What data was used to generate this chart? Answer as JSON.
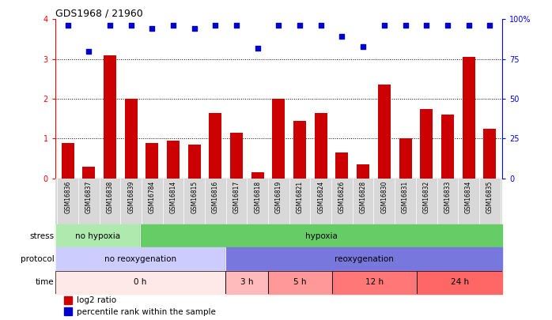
{
  "title": "GDS1968 / 21960",
  "samples": [
    "GSM16836",
    "GSM16837",
    "GSM16838",
    "GSM16839",
    "GSM16784",
    "GSM16814",
    "GSM16815",
    "GSM16816",
    "GSM16817",
    "GSM16818",
    "GSM16819",
    "GSM16821",
    "GSM16824",
    "GSM16826",
    "GSM16828",
    "GSM16830",
    "GSM16831",
    "GSM16832",
    "GSM16833",
    "GSM16834",
    "GSM16835"
  ],
  "log2_ratio": [
    0.9,
    0.3,
    3.1,
    2.0,
    0.9,
    0.95,
    0.85,
    1.65,
    1.15,
    0.15,
    2.0,
    1.45,
    1.65,
    0.65,
    0.35,
    2.35,
    1.0,
    1.75,
    1.6,
    3.05,
    1.25
  ],
  "percentile_rank": [
    96,
    80,
    96,
    96,
    94,
    96,
    94,
    96,
    96,
    82,
    96,
    96,
    96,
    89,
    83,
    96,
    96,
    96,
    96,
    96,
    96
  ],
  "bar_color": "#cc0000",
  "scatter_color": "#0000cc",
  "ylim_left": [
    0,
    4
  ],
  "ylim_right": [
    0,
    100
  ],
  "yticks_left": [
    0,
    1,
    2,
    3,
    4
  ],
  "yticks_right": [
    0,
    25,
    50,
    75,
    100
  ],
  "stress_groups": [
    {
      "label": "no hypoxia",
      "start": 0,
      "end": 4,
      "color": "#aeeaae"
    },
    {
      "label": "hypoxia",
      "start": 4,
      "end": 21,
      "color": "#66cc66"
    }
  ],
  "protocol_groups": [
    {
      "label": "no reoxygenation",
      "start": 0,
      "end": 8,
      "color": "#ccccff"
    },
    {
      "label": "reoxygenation",
      "start": 8,
      "end": 21,
      "color": "#7777dd"
    }
  ],
  "time_groups": [
    {
      "label": "0 h",
      "start": 0,
      "end": 8,
      "color": "#ffe8e8"
    },
    {
      "label": "3 h",
      "start": 8,
      "end": 10,
      "color": "#ffbbbb"
    },
    {
      "label": "5 h",
      "start": 10,
      "end": 13,
      "color": "#ff9999"
    },
    {
      "label": "12 h",
      "start": 13,
      "end": 17,
      "color": "#ff7777"
    },
    {
      "label": "24 h",
      "start": 17,
      "end": 21,
      "color": "#ff6666"
    }
  ],
  "stress_label": "stress",
  "protocol_label": "protocol",
  "time_label": "time",
  "legend_red": "log2 ratio",
  "legend_blue": "percentile rank within the sample",
  "sample_bg": "#d8d8d8"
}
